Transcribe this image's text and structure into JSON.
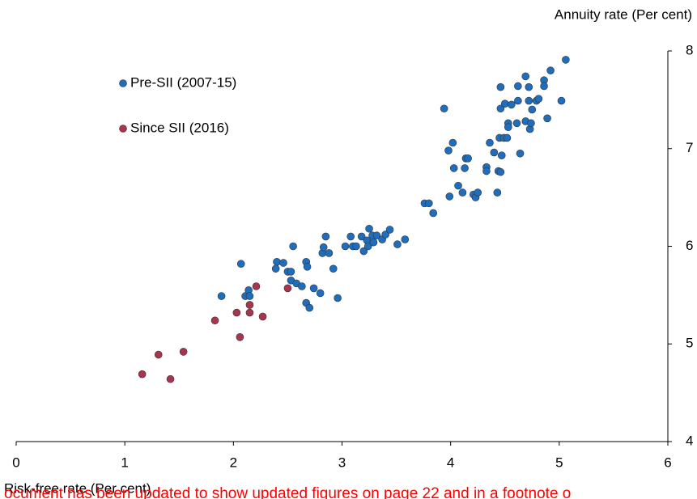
{
  "chart_data": {
    "type": "scatter",
    "x_label": "Risk-free rate (Per cent)",
    "y_label": "Annuity rate (Per cent)",
    "notice": "ocument has been updated to show updated figures on page 22 and in a footnote o",
    "xlim": [
      0,
      6
    ],
    "xticks": [
      0,
      1,
      2,
      3,
      4,
      5,
      6
    ],
    "ylim": [
      4,
      8
    ],
    "yticks": [
      4,
      5,
      6,
      7,
      8
    ],
    "legend": "top-left",
    "series": [
      {
        "name": "Pre-SII (2007-15)",
        "color": "#1f6ebd",
        "x": [
          1.89,
          2.11,
          2.07,
          2.14,
          2.15,
          2.4,
          2.39,
          2.46,
          2.5,
          2.53,
          2.55,
          2.53,
          2.58,
          2.63,
          2.67,
          2.68,
          2.67,
          2.7,
          2.74,
          2.8,
          2.82,
          2.83,
          2.85,
          2.88,
          2.92,
          2.96,
          3.03,
          3.08,
          3.1,
          3.13,
          3.18,
          3.2,
          3.23,
          3.25,
          3.24,
          3.28,
          3.29,
          3.32,
          3.37,
          3.4,
          3.44,
          3.51,
          3.58,
          3.76,
          3.8,
          3.84,
          3.94,
          3.99,
          3.98,
          4.02,
          4.03,
          4.07,
          4.11,
          4.13,
          4.14,
          4.16,
          4.21,
          4.23,
          4.25,
          4.33,
          4.33,
          4.36,
          4.4,
          4.43,
          4.44,
          4.45,
          4.46,
          4.46,
          4.46,
          4.47,
          4.49,
          4.5,
          4.52,
          4.53,
          4.53,
          4.56,
          4.61,
          4.62,
          4.62,
          4.64,
          4.69,
          4.69,
          4.72,
          4.72,
          4.73,
          4.74,
          4.75,
          4.79,
          4.81,
          4.86,
          4.86,
          4.89,
          4.92,
          5.02,
          5.06
        ],
        "values": [
          5.49,
          5.49,
          5.82,
          5.55,
          5.49,
          5.84,
          5.77,
          5.83,
          5.74,
          5.74,
          6.0,
          5.65,
          5.62,
          5.59,
          5.84,
          5.79,
          5.42,
          5.37,
          5.57,
          5.52,
          5.93,
          5.99,
          6.1,
          5.93,
          5.77,
          5.47,
          6.0,
          6.1,
          6.0,
          6.0,
          6.1,
          5.95,
          6.06,
          6.18,
          6.0,
          6.11,
          6.04,
          6.11,
          6.07,
          6.12,
          6.17,
          6.02,
          6.07,
          6.44,
          6.44,
          6.34,
          7.41,
          6.51,
          6.98,
          7.06,
          6.8,
          6.62,
          6.55,
          6.8,
          6.9,
          6.9,
          6.53,
          6.5,
          6.55,
          6.81,
          6.77,
          7.06,
          6.96,
          6.55,
          6.77,
          7.11,
          7.63,
          7.41,
          6.76,
          6.93,
          7.11,
          7.46,
          7.11,
          7.26,
          7.22,
          7.45,
          7.26,
          7.64,
          7.49,
          6.95,
          7.28,
          7.74,
          7.49,
          7.63,
          7.2,
          7.26,
          7.4,
          7.49,
          7.51,
          7.7,
          7.64,
          7.31,
          7.8,
          7.49,
          7.91
        ]
      },
      {
        "name": "Since SII (2016)",
        "color": "#a8354d",
        "x": [
          1.16,
          1.31,
          1.42,
          1.54,
          1.83,
          2.03,
          2.15,
          2.15,
          2.06,
          2.21,
          2.27,
          2.5
        ],
        "values": [
          4.69,
          4.89,
          4.64,
          4.92,
          5.24,
          5.32,
          5.32,
          5.4,
          5.07,
          5.59,
          5.28,
          5.57
        ]
      }
    ]
  }
}
